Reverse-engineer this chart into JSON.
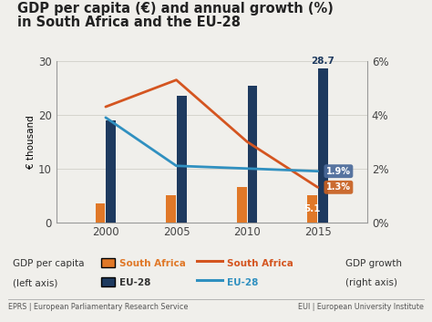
{
  "title_line1": "GDP per capita (€) and annual growth (%)",
  "title_line2": "in South Africa and the EU-28",
  "years": [
    2000,
    2005,
    2010,
    2015
  ],
  "bar_width": 1.8,
  "sa_gdp_per_capita": [
    3.5,
    5.0,
    6.5,
    5.1
  ],
  "eu28_gdp_per_capita": [
    19.0,
    23.5,
    25.5,
    28.7
  ],
  "sa_growth": [
    4.3,
    5.3,
    3.0,
    1.3
  ],
  "eu28_growth": [
    3.9,
    2.1,
    2.0,
    1.9
  ],
  "sa_bar_color": "#e07828",
  "eu28_bar_color": "#1e3a5f",
  "sa_line_color": "#d45520",
  "eu28_line_color": "#3090c0",
  "ylim_left": [
    0,
    30
  ],
  "ylim_right": [
    0,
    6
  ],
  "yticks_left": [
    0,
    10,
    20,
    30
  ],
  "yticks_right": [
    0,
    2,
    4,
    6
  ],
  "ytick_right_labels": [
    "0%",
    "2%",
    "4%",
    "6%"
  ],
  "footer_left": "EPRS | European Parliamentary Research Service",
  "footer_right": "EUI | European University Institute",
  "bg_color": "#f0efeb",
  "annotation_28_7": "28.7",
  "annotation_5_1": "5.1",
  "annotation_1_9": "1.9%",
  "annotation_1_3": "1.3%",
  "annotation_eu28_box_color": "#4a6a9a",
  "annotation_sa_box_color": "#c86020"
}
